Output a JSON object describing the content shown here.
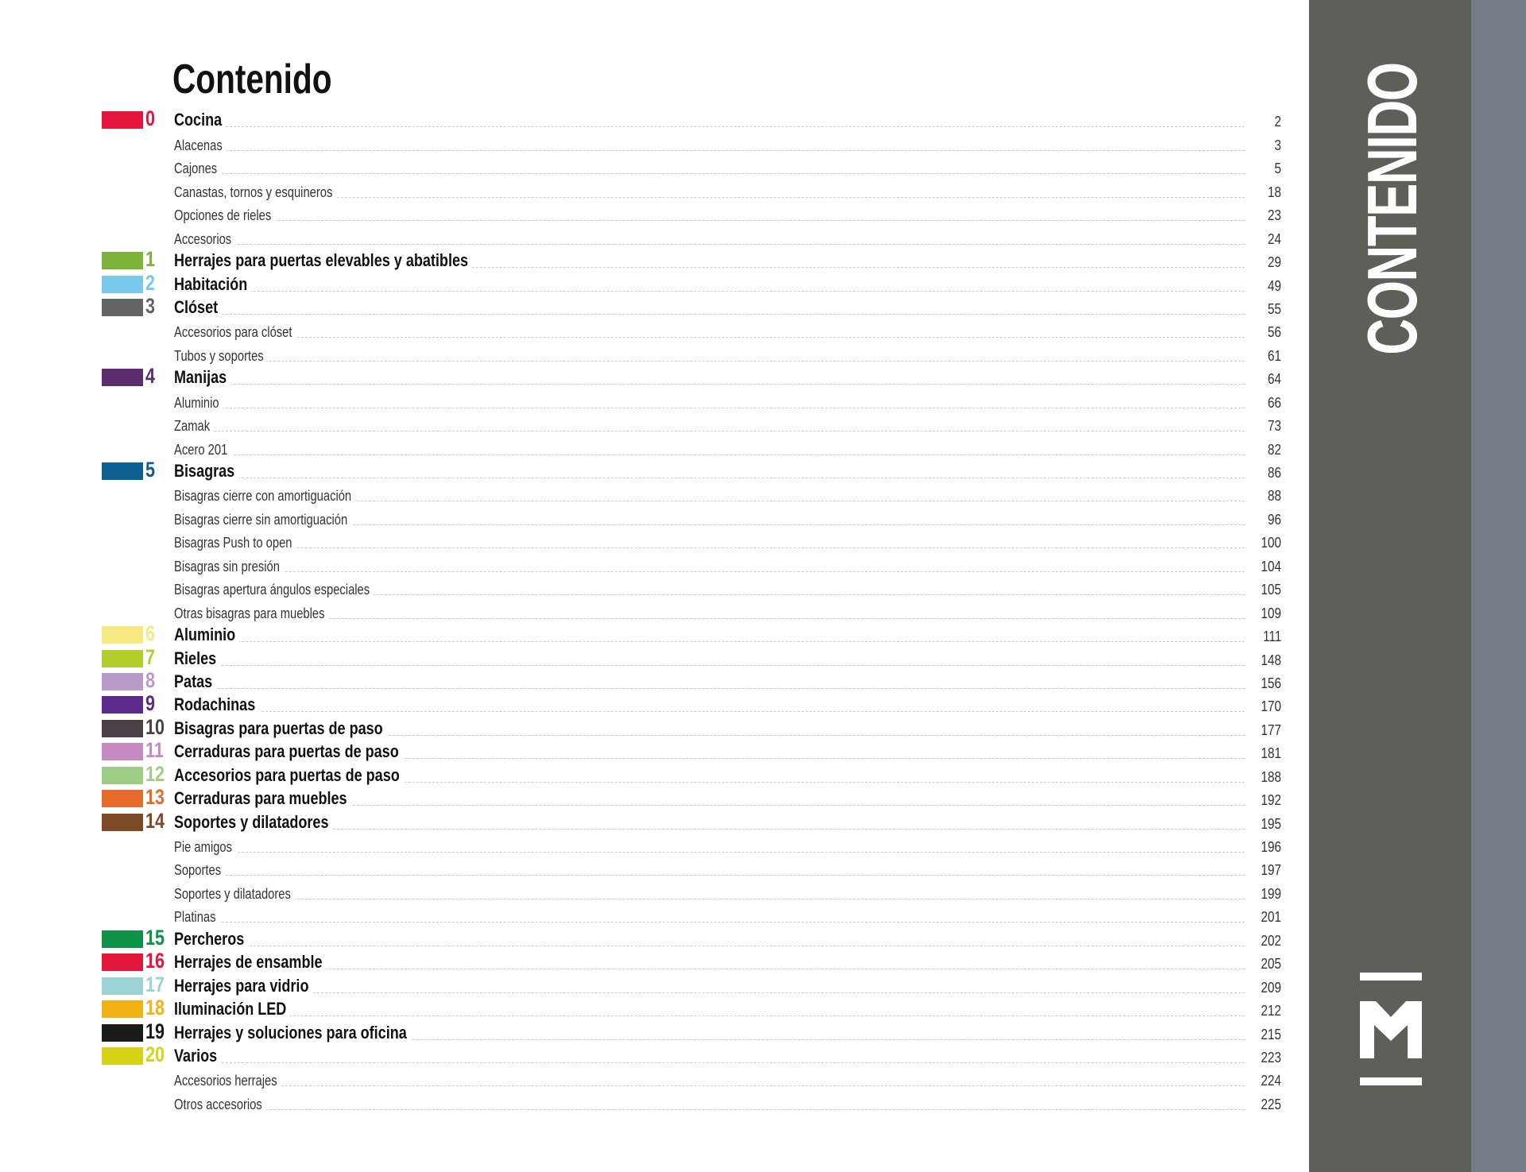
{
  "title": "Contenido",
  "side_panel": {
    "vertical_title": "CONTENIDO",
    "logo_letter": "M",
    "panel_color": "#5f5f5a",
    "edge_color": "#737c87"
  },
  "entries": [
    {
      "level": "h",
      "num": "0",
      "color": "#e4143c",
      "label": "Cocina",
      "page": "2"
    },
    {
      "level": "s",
      "label": "Alacenas",
      "page": "3"
    },
    {
      "level": "s",
      "label": "Cajones",
      "page": "5"
    },
    {
      "level": "s",
      "label": "Canastas, tornos y esquineros",
      "page": "18"
    },
    {
      "level": "s",
      "label": "Opciones de rieles",
      "page": "23"
    },
    {
      "level": "s",
      "label": "Accesorios",
      "page": "24"
    },
    {
      "level": "h",
      "num": "1",
      "color": "#7db33a",
      "label": "Herrajes para puertas elevables y abatibles",
      "page": "29"
    },
    {
      "level": "h",
      "num": "2",
      "color": "#79c8ee",
      "label": "Habitación",
      "page": "49"
    },
    {
      "level": "h",
      "num": "3",
      "color": "#646464",
      "label": "Clóset",
      "page": "55"
    },
    {
      "level": "s",
      "label": "Accesorios para clóset",
      "page": "56"
    },
    {
      "level": "s",
      "label": "Tubos y soportes",
      "page": "61"
    },
    {
      "level": "h",
      "num": "4",
      "color": "#5c2d6e",
      "label": "Manijas",
      "page": "64"
    },
    {
      "level": "s",
      "label": "Aluminio",
      "page": "66"
    },
    {
      "level": "s",
      "label": "Zamak",
      "page": "73"
    },
    {
      "level": "s",
      "label": "Acero 201",
      "page": "82"
    },
    {
      "level": "h",
      "num": "5",
      "color": "#0e6091",
      "label": "Bisagras",
      "page": "86"
    },
    {
      "level": "s",
      "label": "Bisagras cierre con amortiguación",
      "page": "88"
    },
    {
      "level": "s",
      "label": "Bisagras cierre sin amortiguación",
      "page": "96"
    },
    {
      "level": "s",
      "label": "Bisagras Push to open",
      "page": "100"
    },
    {
      "level": "s",
      "label": "Bisagras sin presión",
      "page": "104"
    },
    {
      "level": "s",
      "label": "Bisagras apertura ángulos especiales",
      "page": "105"
    },
    {
      "level": "s",
      "label": "Otras bisagras para muebles",
      "page": "109"
    },
    {
      "level": "h",
      "num": "6",
      "color": "#f7e981",
      "label": "Aluminio",
      "page": "111"
    },
    {
      "level": "h",
      "num": "7",
      "color": "#b3cf2e",
      "label": "Rieles",
      "page": "148"
    },
    {
      "level": "h",
      "num": "8",
      "color": "#b99ac9",
      "label": "Patas",
      "page": "156"
    },
    {
      "level": "h",
      "num": "9",
      "color": "#5b2a8a",
      "label": "Rodachinas",
      "page": "170"
    },
    {
      "level": "h",
      "num": "10",
      "color": "#4a4147",
      "label": "Bisagras para puertas de paso",
      "page": "177"
    },
    {
      "level": "h",
      "num": "11",
      "color": "#c58ac0",
      "label": "Cerraduras para puertas de paso",
      "page": "181"
    },
    {
      "level": "h",
      "num": "12",
      "color": "#9fcf87",
      "label": "Accesorios para puertas de paso",
      "page": "188"
    },
    {
      "level": "h",
      "num": "13",
      "color": "#e56b2a",
      "label": "Cerraduras para muebles",
      "page": "192"
    },
    {
      "level": "h",
      "num": "14",
      "color": "#7c4a26",
      "label": "Soportes y dilatadores",
      "page": "195"
    },
    {
      "level": "s",
      "label": "Pie amigos",
      "page": "196"
    },
    {
      "level": "s",
      "label": "Soportes",
      "page": "197"
    },
    {
      "level": "s",
      "label": "Soportes y dilatadores",
      "page": "199"
    },
    {
      "level": "s",
      "label": "Platinas",
      "page": "201"
    },
    {
      "level": "h",
      "num": "15",
      "color": "#0d9247",
      "label": "Percheros",
      "page": "202"
    },
    {
      "level": "h",
      "num": "16",
      "color": "#e4163c",
      "label": "Herrajes de ensamble",
      "page": "205"
    },
    {
      "level": "h",
      "num": "17",
      "color": "#9bd3d5",
      "label": "Herrajes para vidrio",
      "page": "209"
    },
    {
      "level": "h",
      "num": "18",
      "color": "#f2b213",
      "label": "Iluminación LED",
      "page": "212"
    },
    {
      "level": "h",
      "num": "19",
      "color": "#1a1a1a",
      "label": "Herrajes y soluciones para oficina",
      "page": "215"
    },
    {
      "level": "h",
      "num": "20",
      "color": "#d9d214",
      "label": "Varios",
      "page": "223"
    },
    {
      "level": "s",
      "label": "Accesorios herrajes",
      "page": "224"
    },
    {
      "level": "s",
      "label": "Otros accesorios",
      "page": "225"
    }
  ]
}
